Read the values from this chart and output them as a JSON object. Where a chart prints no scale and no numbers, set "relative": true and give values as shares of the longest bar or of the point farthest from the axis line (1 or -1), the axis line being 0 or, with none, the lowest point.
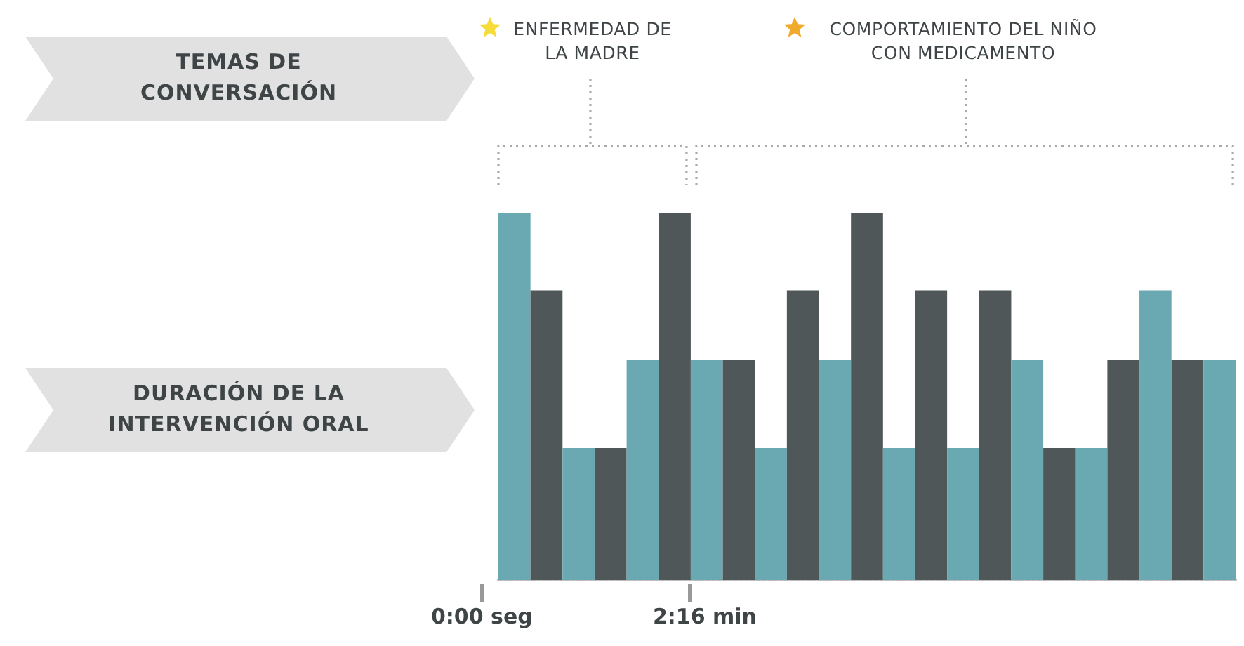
{
  "chart_data": {
    "type": "bar",
    "relative": true,
    "categories": [
      null,
      null,
      null,
      null,
      null,
      null,
      null,
      null,
      null,
      null,
      null,
      null,
      null,
      null,
      null,
      null,
      null,
      null,
      null,
      null,
      null,
      null,
      null
    ],
    "values": [
      1,
      0.79,
      0.36,
      0.36,
      0.6,
      1,
      0.6,
      0.6,
      0.36,
      0.79,
      0.6,
      1,
      0.36,
      0.79,
      0.36,
      0.79,
      0.6,
      0.36,
      0.36,
      0.6,
      0.79,
      0.6,
      0.6
    ],
    "colors": [
      "#6aa9b2",
      "#4f5759",
      "#6aa9b2",
      "#4f5759",
      "#6aa9b2",
      "#4f5759",
      "#6aa9b2",
      "#4f5759",
      "#6aa9b2",
      "#4f5759",
      "#6aa9b2",
      "#4f5759",
      "#6aa9b2",
      "#4f5759",
      "#6aa9b2",
      "#4f5759",
      "#6aa9b2",
      "#4f5759",
      "#6aa9b2",
      "#4f5759",
      "#6aa9b2",
      "#4f5759",
      "#6aa9b2"
    ],
    "annotations": [
      "TEMAS DE CONVERSACIÓN",
      "DURACIÓN DE LA INTERVENCIÓN ORAL",
      "ENFERMEDAD DE LA MADRE",
      "COMPORTAMIENTO DEL NIÑO CON MEDICAMENTO",
      "0:00 seg",
      "2:16 min"
    ]
  }
}
